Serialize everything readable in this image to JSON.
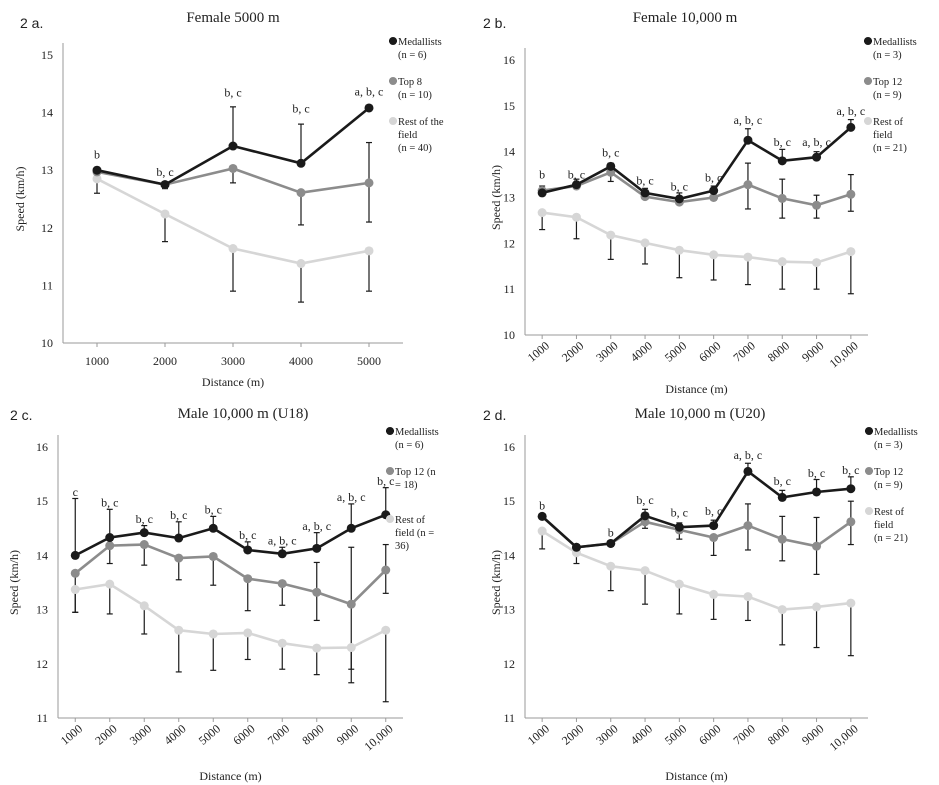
{
  "chart_data": [
    {
      "panel": "2 a.",
      "title": "Female 5000 m",
      "type": "line",
      "xlabel": "Distance (m)",
      "ylabel": "Speed (km/h)",
      "ylim": [
        10,
        15
      ],
      "yticks": [
        "10",
        "11",
        "12",
        "13",
        "14",
        "15"
      ],
      "categories": [
        "1000",
        "2000",
        "3000",
        "4000",
        "5000"
      ],
      "legend_position": "right",
      "series": [
        {
          "name": "Medallists",
          "n_label": "(n = 6)",
          "color": "#1a1a1a",
          "values": [
            13.0,
            12.75,
            13.42,
            13.12,
            14.08
          ]
        },
        {
          "name": "Top 8",
          "n_label": "(n = 10)",
          "color": "#8c8c8c",
          "values": [
            12.97,
            12.75,
            13.03,
            12.61,
            12.78
          ]
        },
        {
          "name": "Rest of the field",
          "n_label": "(n = 40)",
          "color": "#d6d6d6",
          "values": [
            12.85,
            12.24,
            11.64,
            11.38,
            11.6
          ]
        }
      ],
      "error_bars": [
        {
          "series": 0,
          "category": 0,
          "high": 13.05
        },
        {
          "series": 0,
          "category": 2,
          "high": 14.1
        },
        {
          "series": 0,
          "category": 3,
          "high": 13.8
        },
        {
          "series": 0,
          "category": 4,
          "high": 14.12
        },
        {
          "series": 1,
          "category": 1,
          "low": 12.68
        },
        {
          "series": 1,
          "category": 2,
          "low": 12.78
        },
        {
          "series": 1,
          "category": 3,
          "low": 12.05
        },
        {
          "series": 1,
          "category": 4,
          "low": 12.1,
          "high": 13.48
        },
        {
          "series": 2,
          "category": 0,
          "low": 12.6
        },
        {
          "series": 2,
          "category": 1,
          "low": 11.76
        },
        {
          "series": 2,
          "category": 2,
          "low": 10.9
        },
        {
          "series": 2,
          "category": 3,
          "low": 10.71
        },
        {
          "series": 2,
          "category": 4,
          "low": 10.9
        }
      ],
      "annotations": [
        {
          "category": 0,
          "text": "b",
          "y": 13.2
        },
        {
          "category": 1,
          "text": "b, c",
          "y": 12.9
        },
        {
          "category": 2,
          "text": "b, c",
          "y": 14.28
        },
        {
          "category": 3,
          "text": "b, c",
          "y": 14.0
        },
        {
          "category": 4,
          "text": "a, b, c",
          "y": 14.3
        }
      ]
    },
    {
      "panel": "2 b.",
      "title": "Female 10,000 m",
      "type": "line",
      "xlabel": "Distance (m)",
      "ylabel": "Speed (km/h)",
      "ylim": [
        10,
        16
      ],
      "yticks": [
        "10",
        "11",
        "12",
        "13",
        "14",
        "15",
        "16"
      ],
      "categories": [
        "1000",
        "2000",
        "3000",
        "4000",
        "5000",
        "6000",
        "7000",
        "8000",
        "9000",
        "10,000"
      ],
      "legend_position": "right",
      "series": [
        {
          "name": "Medallists",
          "n_label": "(n = 3)",
          "color": "#1a1a1a",
          "values": [
            13.1,
            13.28,
            13.68,
            13.1,
            12.97,
            13.15,
            14.25,
            13.8,
            13.88,
            14.53
          ]
        },
        {
          "name": "Top 12",
          "n_label": "(n = 9)",
          "color": "#8c8c8c",
          "values": [
            13.15,
            13.25,
            13.55,
            13.02,
            12.9,
            13.0,
            13.28,
            12.98,
            12.83,
            13.07
          ]
        },
        {
          "name": "Rest of field",
          "n_label": "(n = 21)",
          "color": "#d6d6d6",
          "values": [
            12.67,
            12.57,
            12.18,
            12.01,
            11.85,
            11.75,
            11.7,
            11.6,
            11.58,
            11.82
          ]
        }
      ],
      "error_bars": [
        {
          "series": 0,
          "category": 0,
          "high": 13.25
        },
        {
          "series": 0,
          "category": 1,
          "high": 13.4
        },
        {
          "series": 0,
          "category": 2,
          "high": 13.75
        },
        {
          "series": 0,
          "category": 3,
          "high": 13.2
        },
        {
          "series": 0,
          "category": 4,
          "high": 13.1
        },
        {
          "series": 0,
          "category": 5,
          "high": 13.25
        },
        {
          "series": 0,
          "category": 6,
          "high": 14.5
        },
        {
          "series": 0,
          "category": 7,
          "high": 14.05
        },
        {
          "series": 0,
          "category": 8,
          "high": 14.0
        },
        {
          "series": 0,
          "category": 9,
          "high": 14.7
        },
        {
          "series": 1,
          "category": 2,
          "low": 13.35
        },
        {
          "series": 1,
          "category": 6,
          "low": 12.75,
          "high": 13.75
        },
        {
          "series": 1,
          "category": 7,
          "low": 12.55,
          "high": 13.4
        },
        {
          "series": 1,
          "category": 8,
          "low": 12.55,
          "high": 13.05
        },
        {
          "series": 1,
          "category": 9,
          "low": 12.7,
          "high": 13.5
        },
        {
          "series": 2,
          "category": 0,
          "low": 12.3
        },
        {
          "series": 2,
          "category": 1,
          "low": 12.1
        },
        {
          "series": 2,
          "category": 2,
          "low": 11.65
        },
        {
          "series": 2,
          "category": 3,
          "low": 11.55
        },
        {
          "series": 2,
          "category": 4,
          "low": 11.25
        },
        {
          "series": 2,
          "category": 5,
          "low": 11.2
        },
        {
          "series": 2,
          "category": 6,
          "low": 11.1
        },
        {
          "series": 2,
          "category": 7,
          "low": 11.0
        },
        {
          "series": 2,
          "category": 8,
          "low": 11.0
        },
        {
          "series": 2,
          "category": 9,
          "low": 10.9
        }
      ],
      "annotations": [
        {
          "category": 0,
          "text": "b",
          "y": 13.42
        },
        {
          "category": 1,
          "text": "b, c",
          "y": 13.42
        },
        {
          "category": 2,
          "text": "b, c",
          "y": 13.9
        },
        {
          "category": 3,
          "text": "b, c",
          "y": 13.28
        },
        {
          "category": 4,
          "text": "b, c",
          "y": 13.15
        },
        {
          "category": 5,
          "text": "b, c",
          "y": 13.35
        },
        {
          "category": 6,
          "text": "a, b, c",
          "y": 14.6
        },
        {
          "category": 7,
          "text": "b, c",
          "y": 14.12
        },
        {
          "category": 8,
          "text": "a, b, c",
          "y": 14.12
        },
        {
          "category": 9,
          "text": "a, b, c",
          "y": 14.8
        }
      ]
    },
    {
      "panel": "2 c.",
      "title": "Male 10,000 m  (U18)",
      "type": "line",
      "xlabel": "Distance (m)",
      "ylabel": "Speed (km/h)",
      "ylim": [
        11,
        16
      ],
      "yticks": [
        "11",
        "12",
        "13",
        "14",
        "15",
        "16"
      ],
      "categories": [
        "1000",
        "2000",
        "3000",
        "4000",
        "5000",
        "6000",
        "7000",
        "8000",
        "9000",
        "10,000"
      ],
      "legend_position": "right",
      "series": [
        {
          "name": "Medallists",
          "n_label": "(n = 6)",
          "color": "#1a1a1a",
          "values": [
            14.0,
            14.33,
            14.42,
            14.32,
            14.5,
            14.1,
            14.03,
            14.13,
            14.5,
            14.75
          ]
        },
        {
          "name": "Top 12",
          "n_label": "(n = 18)",
          "legend_text": [
            "Top 12 (n",
            "= 18)"
          ],
          "color": "#8c8c8c",
          "values": [
            13.67,
            14.18,
            14.2,
            13.95,
            13.98,
            13.57,
            13.48,
            13.32,
            13.1,
            13.73
          ]
        },
        {
          "name": "Rest of field",
          "n_label": "(n = 36)",
          "legend_text": [
            "Rest of",
            "field (n =",
            "36)"
          ],
          "color": "#d6d6d6",
          "values": [
            13.37,
            13.47,
            13.07,
            12.62,
            12.55,
            12.57,
            12.38,
            12.29,
            12.3,
            12.62
          ]
        }
      ],
      "error_bars": [
        {
          "series": 0,
          "category": 0,
          "high": 15.05
        },
        {
          "series": 0,
          "category": 1,
          "high": 14.85
        },
        {
          "series": 0,
          "category": 2,
          "high": 14.55
        },
        {
          "series": 0,
          "category": 3,
          "high": 14.62
        },
        {
          "series": 0,
          "category": 4,
          "high": 14.72
        },
        {
          "series": 0,
          "category": 5,
          "high": 14.25
        },
        {
          "series": 0,
          "category": 6,
          "high": 14.15
        },
        {
          "series": 0,
          "category": 7,
          "high": 14.42
        },
        {
          "series": 0,
          "category": 8,
          "high": 14.95
        },
        {
          "series": 0,
          "category": 9,
          "high": 15.25
        },
        {
          "series": 1,
          "category": 0,
          "low": 12.95
        },
        {
          "series": 1,
          "category": 1,
          "low": 13.85
        },
        {
          "series": 1,
          "category": 2,
          "low": 13.82
        },
        {
          "series": 1,
          "category": 3,
          "low": 13.55
        },
        {
          "series": 1,
          "category": 4,
          "low": 13.45
        },
        {
          "series": 1,
          "category": 5,
          "low": 12.98
        },
        {
          "series": 1,
          "category": 6,
          "low": 13.08
        },
        {
          "series": 1,
          "category": 7,
          "low": 12.8,
          "high": 13.87
        },
        {
          "series": 1,
          "category": 8,
          "low": 11.65,
          "high": 14.15
        },
        {
          "series": 1,
          "category": 9,
          "low": 13.3,
          "high": 14.2
        },
        {
          "series": 2,
          "category": 0,
          "low": 12.95
        },
        {
          "series": 2,
          "category": 1,
          "low": 12.92
        },
        {
          "series": 2,
          "category": 2,
          "low": 12.55
        },
        {
          "series": 2,
          "category": 3,
          "low": 11.85
        },
        {
          "series": 2,
          "category": 4,
          "low": 11.88
        },
        {
          "series": 2,
          "category": 5,
          "low": 12.08
        },
        {
          "series": 2,
          "category": 6,
          "low": 11.9
        },
        {
          "series": 2,
          "category": 7,
          "low": 11.8
        },
        {
          "series": 2,
          "category": 8,
          "low": 11.9
        },
        {
          "series": 2,
          "category": 9,
          "low": 11.3
        }
      ],
      "annotations": [
        {
          "category": 0,
          "text": "c",
          "y": 15.1
        },
        {
          "category": 1,
          "text": "b, c",
          "y": 14.9
        },
        {
          "category": 2,
          "text": "b, c",
          "y": 14.6
        },
        {
          "category": 3,
          "text": "b, c",
          "y": 14.67
        },
        {
          "category": 4,
          "text": "b, c",
          "y": 14.77
        },
        {
          "category": 5,
          "text": "b, c",
          "y": 14.3
        },
        {
          "category": 6,
          "text": "a, b, c",
          "y": 14.2
        },
        {
          "category": 7,
          "text": "a, b, c",
          "y": 14.47
        },
        {
          "category": 8,
          "text": "a, b, c",
          "y": 15.0
        },
        {
          "category": 9,
          "text": "b, c",
          "y": 15.3
        }
      ]
    },
    {
      "panel": "2 d.",
      "title": "Male 10,000 m (U20)",
      "type": "line",
      "xlabel": "Distance (m)",
      "ylabel": "Speed (km/h)",
      "ylim": [
        11,
        16
      ],
      "yticks": [
        "11",
        "12",
        "13",
        "14",
        "15",
        "16"
      ],
      "categories": [
        "1000",
        "2000",
        "3000",
        "4000",
        "5000",
        "6000",
        "7000",
        "8000",
        "9000",
        "10,000"
      ],
      "legend_position": "right",
      "series": [
        {
          "name": "Medallists",
          "n_label": "(n = 3)",
          "color": "#1a1a1a",
          "values": [
            14.72,
            14.15,
            14.22,
            14.73,
            14.52,
            14.55,
            15.55,
            15.07,
            15.17,
            15.23
          ]
        },
        {
          "name": "Top 12",
          "n_label": "(n = 9)",
          "color": "#8c8c8c",
          "values": [
            14.72,
            14.15,
            14.22,
            14.62,
            14.47,
            14.33,
            14.55,
            14.3,
            14.17,
            14.62
          ]
        },
        {
          "name": "Rest of field",
          "n_label": "(n = 21)",
          "color": "#d6d6d6",
          "values": [
            14.45,
            14.05,
            13.8,
            13.72,
            13.47,
            13.28,
            13.24,
            13.0,
            13.05,
            13.12
          ]
        }
      ],
      "error_bars": [
        {
          "series": 0,
          "category": 3,
          "high": 14.85
        },
        {
          "series": 0,
          "category": 4,
          "high": 14.6
        },
        {
          "series": 0,
          "category": 5,
          "high": 14.65
        },
        {
          "series": 0,
          "category": 6,
          "high": 15.7
        },
        {
          "series": 0,
          "category": 7,
          "high": 15.2
        },
        {
          "series": 0,
          "category": 8,
          "high": 15.4
        },
        {
          "series": 0,
          "category": 9,
          "high": 15.45
        },
        {
          "series": 1,
          "category": 3,
          "low": 14.5
        },
        {
          "series": 1,
          "category": 4,
          "low": 14.3
        },
        {
          "series": 1,
          "category": 5,
          "low": 14.0
        },
        {
          "series": 1,
          "category": 6,
          "low": 14.1,
          "high": 14.95
        },
        {
          "series": 1,
          "category": 7,
          "low": 13.9,
          "high": 14.72
        },
        {
          "series": 1,
          "category": 8,
          "low": 13.65,
          "high": 14.7
        },
        {
          "series": 1,
          "category": 9,
          "low": 14.2,
          "high": 15.0
        },
        {
          "series": 2,
          "category": 0,
          "low": 14.12
        },
        {
          "series": 2,
          "category": 1,
          "low": 13.85
        },
        {
          "series": 2,
          "category": 2,
          "low": 13.35
        },
        {
          "series": 2,
          "category": 3,
          "low": 13.1
        },
        {
          "series": 2,
          "category": 4,
          "low": 12.92
        },
        {
          "series": 2,
          "category": 5,
          "low": 12.82
        },
        {
          "series": 2,
          "category": 6,
          "low": 12.8
        },
        {
          "series": 2,
          "category": 7,
          "low": 12.35
        },
        {
          "series": 2,
          "category": 8,
          "low": 12.3
        },
        {
          "series": 2,
          "category": 9,
          "low": 12.15
        }
      ],
      "annotations": [
        {
          "category": 0,
          "text": "b",
          "y": 14.85
        },
        {
          "category": 2,
          "text": "b",
          "y": 14.35
        },
        {
          "category": 3,
          "text": "b, c",
          "y": 14.95
        },
        {
          "category": 4,
          "text": "b, c",
          "y": 14.72
        },
        {
          "category": 5,
          "text": "b, c",
          "y": 14.75
        },
        {
          "category": 6,
          "text": "a, b, c",
          "y": 15.78
        },
        {
          "category": 7,
          "text": "b, c",
          "y": 15.3
        },
        {
          "category": 8,
          "text": "b, c",
          "y": 15.45
        },
        {
          "category": 9,
          "text": "b, c",
          "y": 15.5
        }
      ]
    }
  ]
}
